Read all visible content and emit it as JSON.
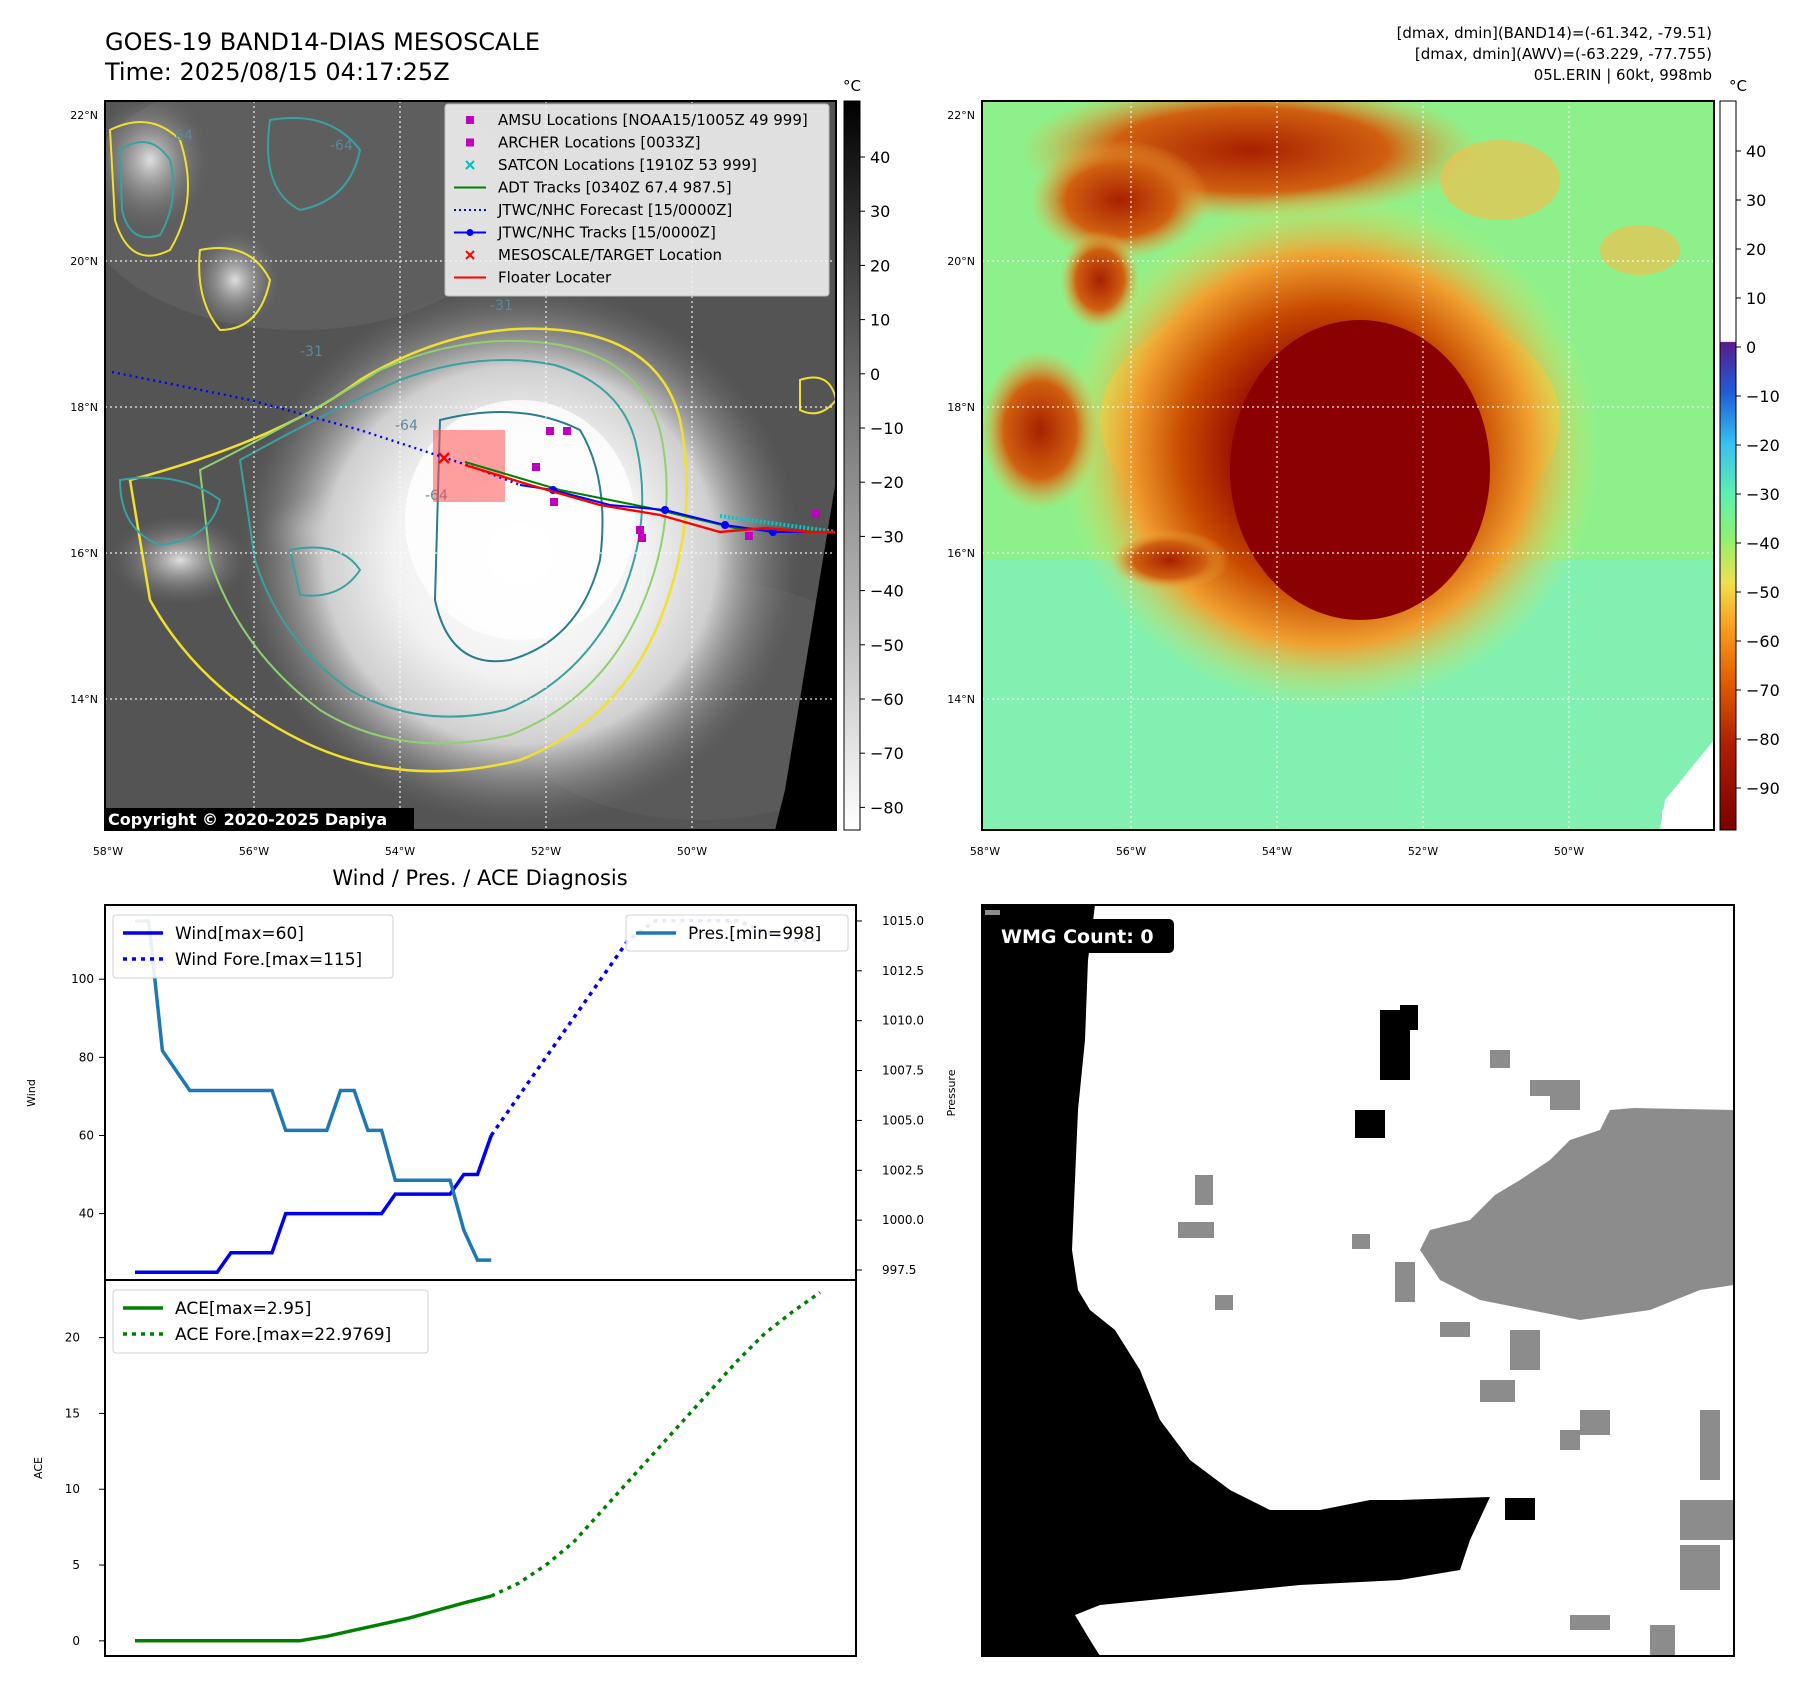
{
  "header": {
    "title_line1": "GOES-19 BAND14-DIAS MESOSCALE",
    "title_line2": "Time: 2025/08/15 04:17:25Z",
    "right_line1": "[dmax, dmin](BAND14)=(-61.342, -79.51)",
    "right_line2": "[dmax, dmin](AWV)=(-63.229, -77.755)",
    "right_line3": "05L.ERIN | 60kt, 998mb"
  },
  "maps": {
    "lon_labels": [
      "58°W",
      "56°W",
      "54°W",
      "52°W",
      "50°W"
    ],
    "lat_labels": [
      "22°N",
      "20°N",
      "18°N",
      "16°N",
      "14°N"
    ],
    "copyright": "Copyright © 2020-2025 Dapiya",
    "contour_labels": [
      "-64",
      "-64",
      "-31",
      "-31",
      "-64",
      "-64"
    ],
    "legend": [
      {
        "label": "AMSU Locations [NOAA15/1005Z 49 999]",
        "marker": "square",
        "color": "#c000c0"
      },
      {
        "label": "ARCHER Locations [0033Z]",
        "marker": "square",
        "color": "#c000c0"
      },
      {
        "label": "SATCON Locations [1910Z 53 999]",
        "marker": "x",
        "color": "#00c0c0"
      },
      {
        "label": "ADT Tracks [0340Z 67.4 987.5]",
        "marker": "line",
        "color": "#008000"
      },
      {
        "label": "JTWC/NHC Forecast [15/0000Z]",
        "marker": "dotted",
        "color": "#0000ff"
      },
      {
        "label": "JTWC/NHC Tracks [15/0000Z]",
        "marker": "dotline",
        "color": "#0000ff"
      },
      {
        "label": "MESOSCALE/TARGET Location",
        "marker": "x",
        "color": "#ff0000"
      },
      {
        "label": "Floater Locater",
        "marker": "line",
        "color": "#ff0000"
      }
    ],
    "cbar_unit": "°C",
    "cbar1_ticks": [
      "40",
      "30",
      "20",
      "10",
      "0",
      "−10",
      "−20",
      "−30",
      "−40",
      "−50",
      "−60",
      "−70",
      "−80"
    ],
    "cbar2_ticks": [
      "40",
      "30",
      "20",
      "10",
      "0",
      "−10",
      "−20",
      "−30",
      "−40",
      "−50",
      "−60",
      "−70",
      "−80",
      "−90"
    ]
  },
  "wmg": {
    "count_label": "WMG Count: 0"
  },
  "chart_data": [
    {
      "type": "line",
      "title": "Wind / Pres. / ACE Diagnosis",
      "ylabel": "Wind",
      "ylabel_right": "Pressure",
      "ylim": [
        23,
        119
      ],
      "ylim_right": [
        997,
        1015.8
      ],
      "yticks": [
        40,
        60,
        80,
        100
      ],
      "yticks_right": [
        "997.5",
        "1000.0",
        "1002.5",
        "1005.0",
        "1007.5",
        "1010.0",
        "1012.5",
        "1015.0"
      ],
      "series": [
        {
          "name": "Wind[max=60]",
          "color": "#0000ee",
          "style": "solid",
          "x": [
            0,
            1,
            2,
            3,
            4,
            5,
            6,
            7,
            8,
            9,
            10,
            11,
            12,
            13,
            14,
            15,
            16,
            17,
            18,
            19,
            20,
            21,
            22,
            23,
            24,
            25,
            26
          ],
          "values": [
            25,
            25,
            25,
            25,
            25,
            25,
            25,
            30,
            30,
            30,
            30,
            40,
            40,
            40,
            40,
            40,
            40,
            40,
            40,
            45,
            45,
            45,
            45,
            45,
            50,
            50,
            60
          ]
        },
        {
          "name": "Wind Fore.[max=115]",
          "color": "#0000ee",
          "style": "dotted",
          "x": [
            26,
            28,
            30,
            32,
            34,
            36,
            38,
            40,
            42,
            44,
            46,
            48,
            50
          ],
          "values": [
            60,
            70,
            80,
            90,
            100,
            110,
            115,
            115,
            115,
            115,
            112,
            110,
            110
          ]
        },
        {
          "name": "Pres.[min=998]",
          "color": "#1f77b4",
          "style": "solid",
          "axis": "right",
          "x": [
            0,
            1,
            2,
            3,
            4,
            5,
            6,
            7,
            8,
            9,
            10,
            11,
            12,
            13,
            14,
            15,
            16,
            17,
            18,
            19,
            20,
            21,
            22,
            23,
            24,
            25,
            26
          ],
          "values": [
            1015,
            1015,
            1008.5,
            1007.5,
            1006.5,
            1006.5,
            1006.5,
            1006.5,
            1006.5,
            1006.5,
            1006.5,
            1004.5,
            1004.5,
            1004.5,
            1004.5,
            1006.5,
            1006.5,
            1004.5,
            1004.5,
            1002,
            1002,
            1002,
            1002,
            1002,
            999.5,
            998,
            998
          ]
        }
      ],
      "legend_left": [
        "Wind[max=60]",
        "Wind Fore.[max=115]"
      ],
      "legend_right": [
        "Pres.[min=998]"
      ]
    },
    {
      "type": "line",
      "title": "",
      "ylabel": "ACE",
      "ylim": [
        -1,
        23.8
      ],
      "yticks": [
        0,
        5,
        10,
        15,
        20
      ],
      "series": [
        {
          "name": "ACE[max=2.95]",
          "color": "#008000",
          "style": "solid",
          "x": [
            0,
            2,
            4,
            6,
            8,
            10,
            12,
            14,
            16,
            18,
            20,
            22,
            24,
            26
          ],
          "values": [
            0,
            0,
            0,
            0,
            0,
            0,
            0,
            0.3,
            0.7,
            1.1,
            1.5,
            2.0,
            2.5,
            2.95
          ]
        },
        {
          "name": "ACE Fore.[max=22.9769]",
          "color": "#008000",
          "style": "dotted",
          "x": [
            26,
            28,
            30,
            32,
            34,
            36,
            38,
            40,
            42,
            44,
            46,
            48,
            50
          ],
          "values": [
            2.95,
            3.8,
            5.0,
            6.5,
            8.5,
            10.5,
            12.5,
            14.5,
            16.5,
            18.5,
            20.3,
            21.7,
            22.98
          ]
        }
      ],
      "legend": [
        "ACE[max=2.95]",
        "ACE Fore.[max=22.9769]"
      ]
    }
  ]
}
